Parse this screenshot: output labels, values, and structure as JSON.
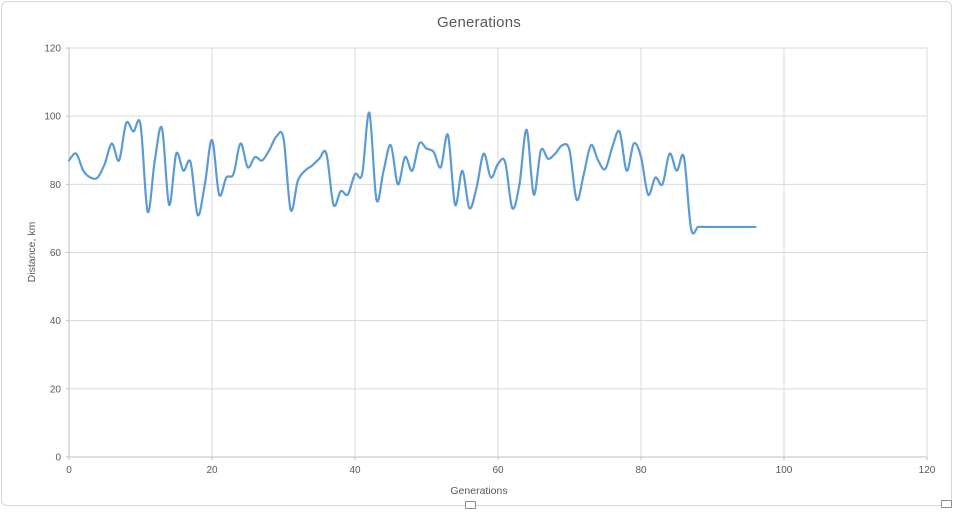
{
  "chart": {
    "title": "Generations",
    "title_color": "#595959",
    "line_color": "#5b9bd5",
    "gridline_color": "#d9d9d9",
    "axis_line_color": "#bfbfbf",
    "label_color": "#595959",
    "frame_border_color": "#d7d7d7",
    "background": "#ffffff"
  },
  "chart_data": {
    "type": "line",
    "title": "Generations",
    "xlabel": "Generations",
    "ylabel": "Distance, km",
    "xlim": [
      0,
      120
    ],
    "ylim": [
      0,
      120
    ],
    "x_ticks": [
      0,
      20,
      40,
      60,
      80,
      100,
      120
    ],
    "y_ticks": [
      0,
      20,
      40,
      60,
      80,
      100,
      120
    ],
    "grid": true,
    "legend": false,
    "line_style": "smooth",
    "series": [
      {
        "name": "Distance, km",
        "x_start": 0,
        "x_step": 1,
        "values": [
          87,
          89,
          84,
          82,
          82,
          86,
          92,
          87,
          98,
          95.5,
          97.5,
          72,
          87,
          96.5,
          74,
          89,
          84,
          86.5,
          71,
          80,
          93,
          77,
          82,
          83,
          92,
          85,
          88,
          87,
          90,
          94,
          93.5,
          72.5,
          81,
          84,
          85.5,
          87.5,
          89,
          74,
          78,
          77,
          83,
          83,
          101,
          75.5,
          84,
          91.5,
          80,
          88,
          84,
          92,
          90.5,
          89.5,
          85,
          94.5,
          74,
          84,
          73,
          79,
          89,
          82,
          86,
          86.5,
          73,
          80,
          96,
          77,
          90,
          87.5,
          89,
          91.5,
          90,
          75.5,
          83,
          91.5,
          87,
          84.5,
          91,
          95.5,
          84,
          92,
          88,
          77,
          82,
          80,
          89,
          84,
          88,
          67,
          67.5,
          67.5,
          67.5,
          67.5,
          67.5,
          67.5,
          67.5,
          67.5,
          67.5
        ]
      }
    ]
  },
  "selection": {
    "handles": [
      "mid-bottom",
      "corner-bottom-right"
    ]
  }
}
